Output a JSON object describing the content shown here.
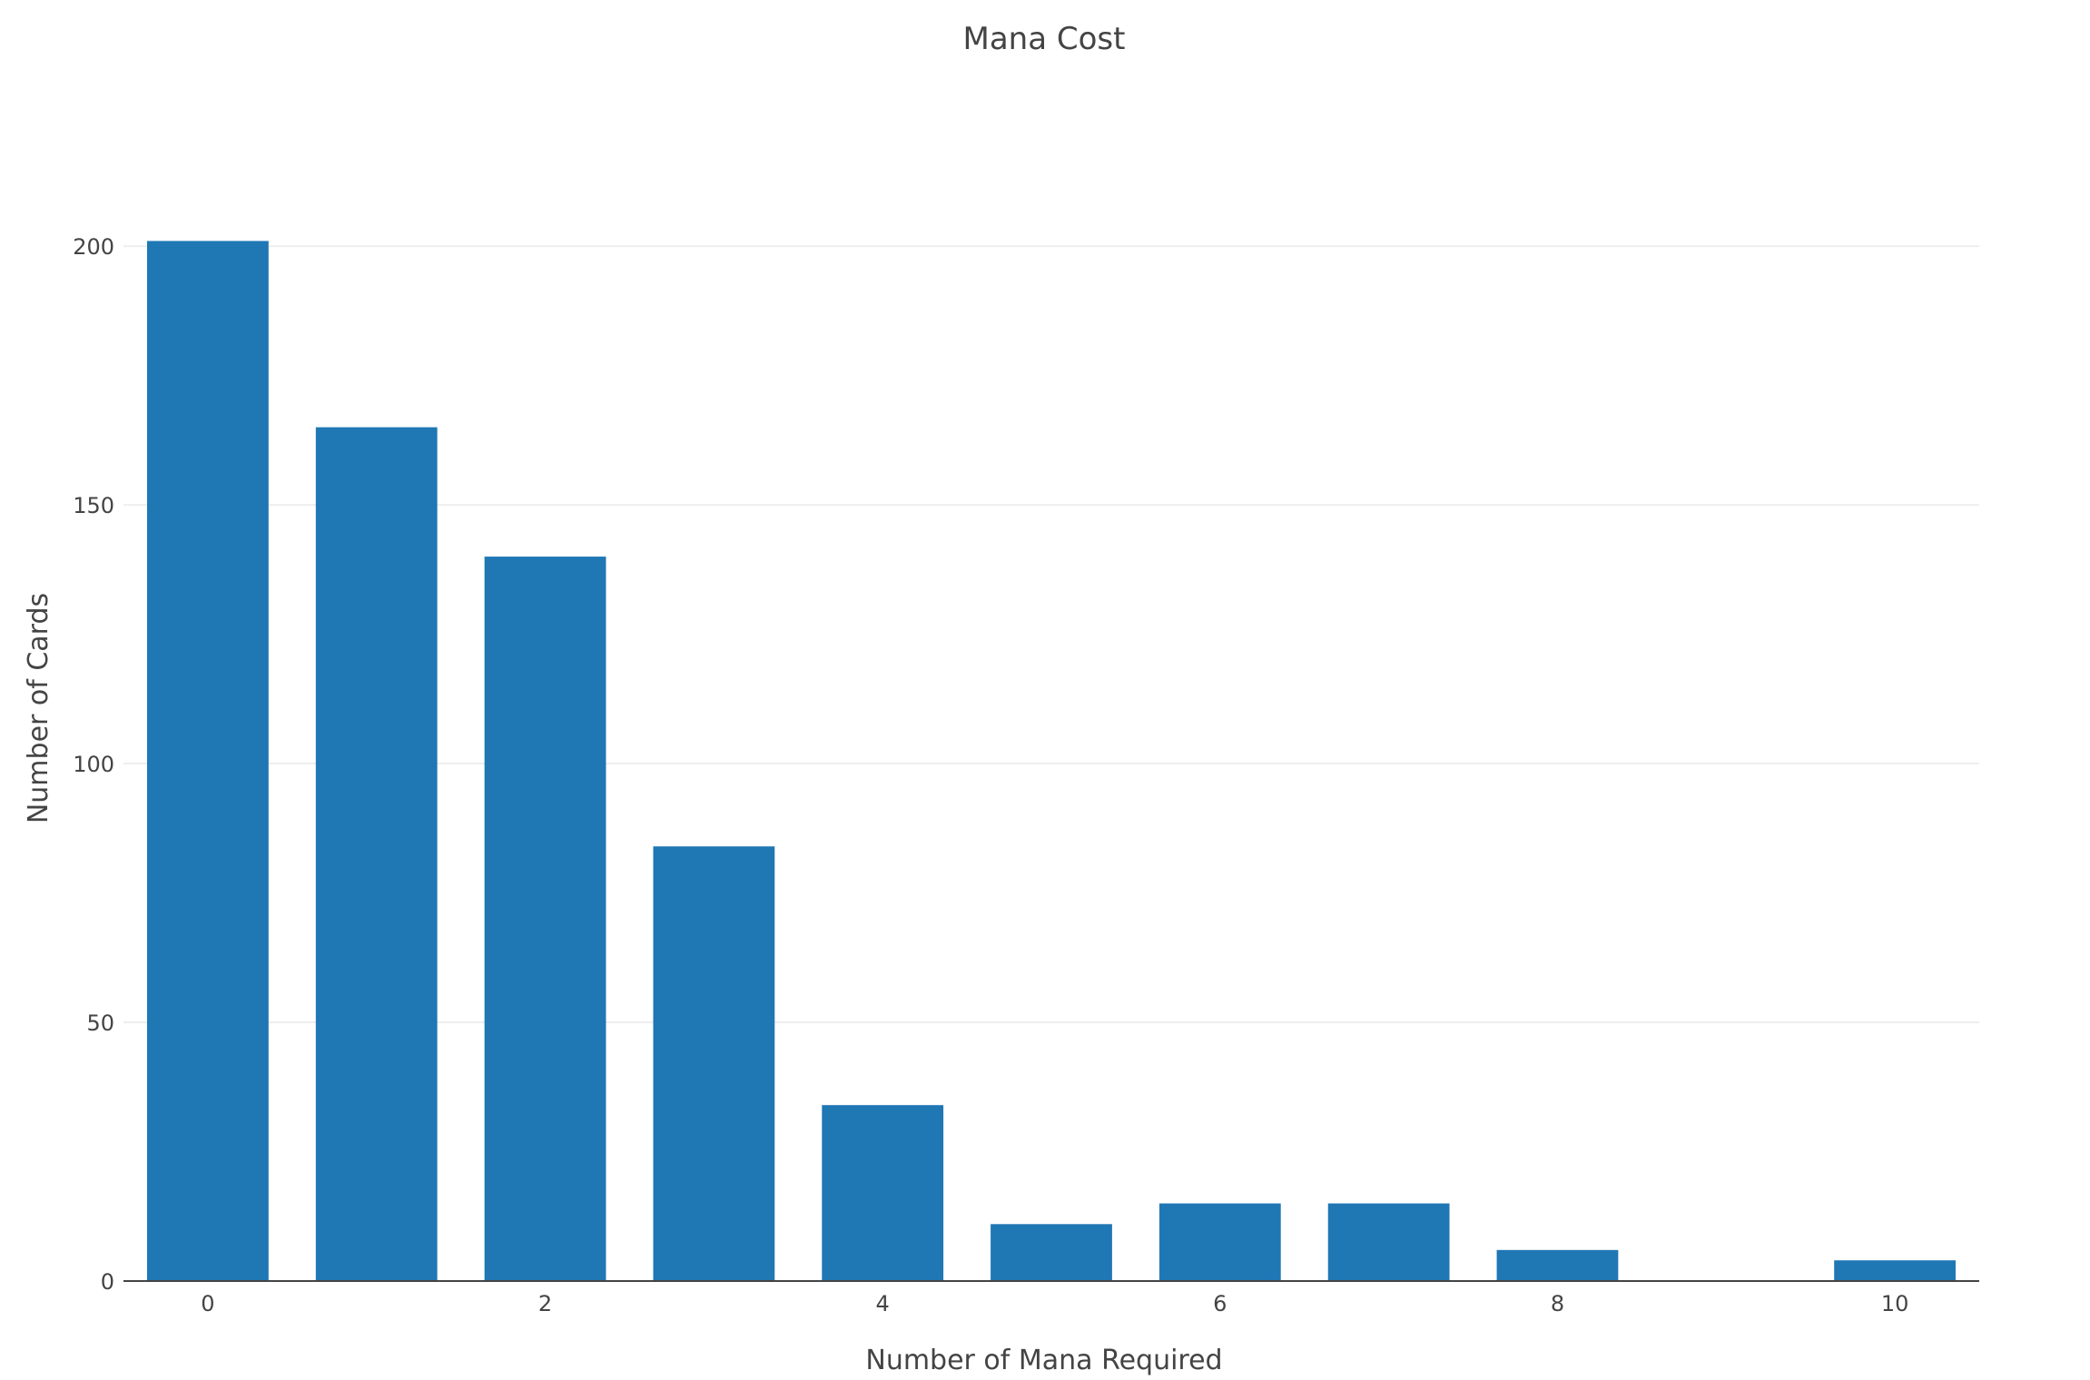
{
  "chart_data": {
    "type": "bar",
    "title": "Mana Cost",
    "xlabel": "Number of Mana Required",
    "ylabel": "Number of Cards",
    "categories": [
      0,
      1,
      2,
      3,
      4,
      5,
      6,
      7,
      8,
      9,
      10
    ],
    "values": [
      201,
      165,
      140,
      84,
      34,
      11,
      15,
      15,
      6,
      0,
      4
    ],
    "xticks": [
      0,
      2,
      4,
      6,
      8,
      10
    ],
    "yticks": [
      0,
      50,
      100,
      150,
      200
    ],
    "xlim": [
      -0.5,
      10.5
    ],
    "ylim": [
      0,
      211.6
    ],
    "grid": true,
    "legend": "none",
    "bar_color": "#1f77b4",
    "grid_color": "#eeeeee",
    "axis_color": "#444444",
    "text_color": "#444444"
  }
}
